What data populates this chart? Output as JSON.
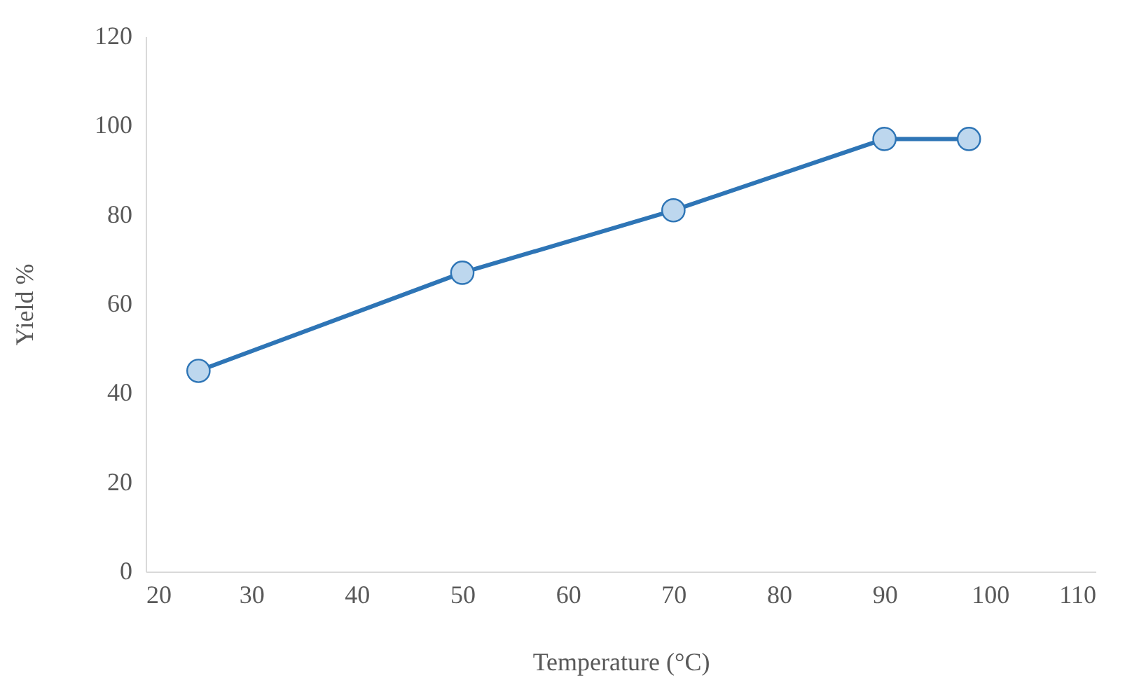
{
  "chart_data": {
    "type": "line",
    "xlabel": "Temperature (°C)",
    "ylabel": "Yield %",
    "x": [
      25,
      50,
      70,
      90,
      98
    ],
    "series": [
      {
        "color": "#2e75b6",
        "values": [
          45,
          67,
          81,
          97,
          97
        ]
      }
    ],
    "xlim": [
      20,
      110
    ],
    "xticks": [
      20,
      30,
      40,
      50,
      60,
      70,
      80,
      90,
      100,
      110
    ],
    "ylim": [
      0,
      120
    ],
    "yticks": [
      0,
      20,
      40,
      60,
      80,
      100,
      120
    ],
    "grid": false,
    "marker": "circle",
    "line_style": "solid"
  }
}
